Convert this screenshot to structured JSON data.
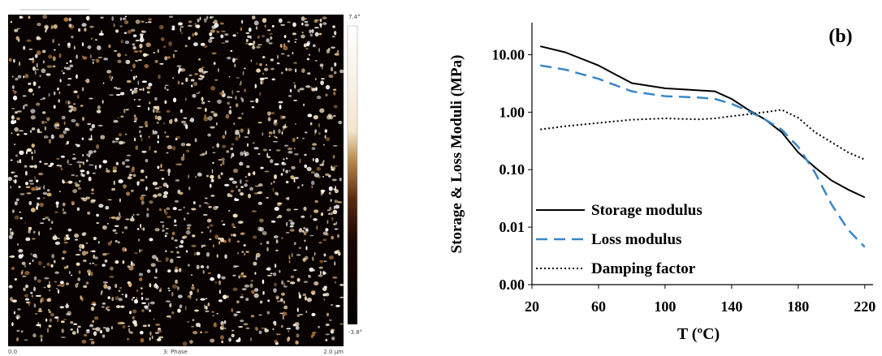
{
  "image_panel": {
    "colorbar_max": "7.4°",
    "colorbar_min": "-3.8°",
    "x_start": "0.0",
    "channel": "3: Phase",
    "x_end": "2.0 µm"
  },
  "chart_data": {
    "type": "line",
    "annotation": "(b)",
    "annotation_color": "#2e7ec4",
    "x_label": "T (ºC)",
    "y_label": "Storage & Loss Moduli (MPa)",
    "log_y": true,
    "legend": "lower left",
    "x": [
      25,
      40,
      60,
      80,
      100,
      120,
      130,
      140,
      150,
      160,
      170,
      180,
      190,
      200,
      210,
      220
    ],
    "series": [
      {
        "name": "Storage modulus",
        "color": "#000000",
        "line_style": "solid",
        "values": [
          14,
          11,
          6.5,
          3.2,
          2.6,
          2.4,
          2.3,
          1.7,
          1.1,
          0.75,
          0.45,
          0.2,
          0.11,
          0.065,
          0.045,
          0.033
        ]
      },
      {
        "name": "Loss modulus",
        "color": "#3a86c8",
        "line_style": "dashed",
        "values": [
          6.5,
          5.5,
          3.8,
          2.3,
          1.9,
          1.8,
          1.7,
          1.4,
          1.05,
          0.75,
          0.5,
          0.25,
          0.09,
          0.025,
          0.009,
          0.0045
        ]
      },
      {
        "name": "Damping factor",
        "color": "#000000",
        "line_style": "dotted",
        "values": [
          0.5,
          0.57,
          0.65,
          0.74,
          0.78,
          0.75,
          0.78,
          0.85,
          0.92,
          1.0,
          1.1,
          0.8,
          0.45,
          0.3,
          0.2,
          0.15
        ]
      }
    ],
    "xlim": [
      20,
      225
    ],
    "xticks": [
      20,
      60,
      100,
      140,
      180,
      220
    ],
    "ylim": [
      0.001,
      36
    ],
    "yticks": [
      {
        "value": 0.001,
        "label": "0.00"
      },
      {
        "value": 0.01,
        "label": "0.01"
      },
      {
        "value": 0.1,
        "label": "0.10"
      },
      {
        "value": 1,
        "label": "1.00"
      },
      {
        "value": 10,
        "label": "10.00"
      }
    ]
  }
}
